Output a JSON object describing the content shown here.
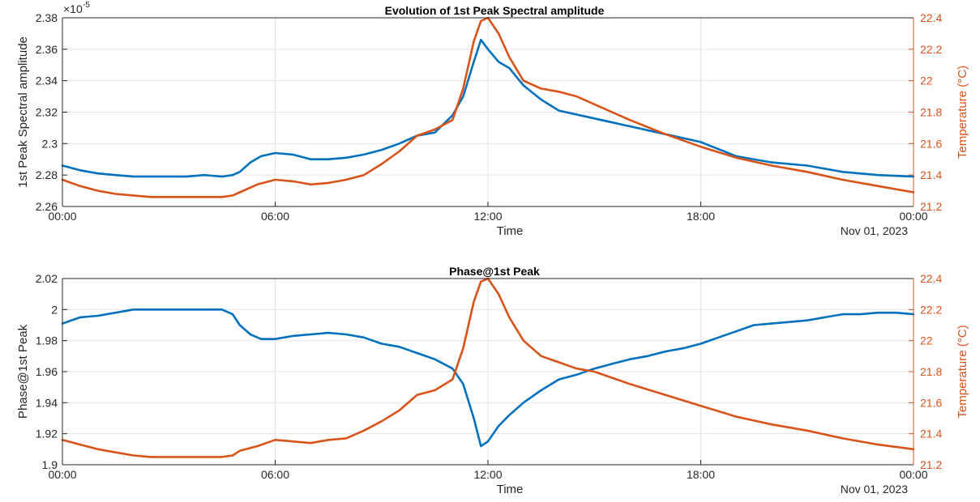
{
  "chart_data": [
    {
      "type": "line",
      "title": "Evolution of 1st Peak Spectral amplitude",
      "xlabel": "Time",
      "date_label": "Nov 01, 2023",
      "x_ticks": [
        "00:00",
        "06:00",
        "12:00",
        "18:00",
        "00:00"
      ],
      "x_range_hours": [
        0,
        24
      ],
      "y_left": {
        "label": "1st Peak Spectral amplitude",
        "exponent_label": "×10",
        "exponent_power": "-5",
        "range": [
          2.26,
          2.38
        ],
        "ticks": [
          "2.26",
          "2.28",
          "2.3",
          "2.32",
          "2.34",
          "2.36",
          "2.38"
        ]
      },
      "y_right": {
        "label": "Temperature (°C)",
        "range": [
          21.2,
          22.4
        ],
        "ticks": [
          "21.2",
          "21.4",
          "21.6",
          "21.8",
          "22",
          "22.2",
          "22.4"
        ]
      },
      "grid": true,
      "series": [
        {
          "axis": "left",
          "color": "#0072BD",
          "x": [
            0,
            0.5,
            1,
            1.5,
            2,
            2.5,
            3,
            3.5,
            4,
            4.5,
            4.8,
            5,
            5.3,
            5.6,
            6,
            6.5,
            7,
            7.5,
            8,
            8.5,
            9,
            9.5,
            10,
            10.5,
            11,
            11.3,
            11.6,
            11.8,
            12,
            12.3,
            12.6,
            13,
            13.5,
            14,
            15,
            16,
            17,
            18,
            19,
            20,
            21,
            22,
            23,
            24
          ],
          "y": [
            2.286,
            2.283,
            2.281,
            2.28,
            2.279,
            2.279,
            2.279,
            2.279,
            2.28,
            2.279,
            2.28,
            2.282,
            2.288,
            2.292,
            2.294,
            2.293,
            2.29,
            2.29,
            2.291,
            2.293,
            2.296,
            2.3,
            2.305,
            2.307,
            2.318,
            2.33,
            2.352,
            2.366,
            2.36,
            2.352,
            2.348,
            2.337,
            2.328,
            2.321,
            2.316,
            2.311,
            2.306,
            2.301,
            2.292,
            2.288,
            2.286,
            2.282,
            2.28,
            2.279
          ]
        },
        {
          "axis": "right",
          "color": "#D95319",
          "x": [
            0,
            0.5,
            1,
            1.5,
            2,
            2.5,
            3,
            3.5,
            4,
            4.5,
            4.8,
            5,
            5.5,
            6,
            6.5,
            7,
            7.5,
            8,
            8.5,
            9,
            9.5,
            10,
            10.5,
            11,
            11.3,
            11.6,
            11.8,
            12,
            12.3,
            12.6,
            13,
            13.5,
            14,
            14.5,
            15,
            16,
            17,
            18,
            19,
            20,
            21,
            22,
            23,
            24
          ],
          "y": [
            21.37,
            21.33,
            21.3,
            21.28,
            21.27,
            21.26,
            21.26,
            21.26,
            21.26,
            21.26,
            21.27,
            21.29,
            21.34,
            21.37,
            21.36,
            21.34,
            21.35,
            21.37,
            21.4,
            21.47,
            21.55,
            21.65,
            21.69,
            21.75,
            21.95,
            22.25,
            22.38,
            22.4,
            22.3,
            22.15,
            22.0,
            21.95,
            21.93,
            21.9,
            21.85,
            21.75,
            21.66,
            21.58,
            21.51,
            21.46,
            21.42,
            21.37,
            21.33,
            21.29
          ]
        }
      ]
    },
    {
      "type": "line",
      "title": "Phase@1st Peak",
      "xlabel": "Time",
      "date_label": "Nov 01, 2023",
      "x_ticks": [
        "00:00",
        "06:00",
        "12:00",
        "18:00",
        "00:00"
      ],
      "x_range_hours": [
        0,
        24
      ],
      "y_left": {
        "label": "Phase@1st Peak",
        "range": [
          1.9,
          2.02
        ],
        "ticks": [
          "1.9",
          "1.92",
          "1.94",
          "1.96",
          "1.98",
          "2",
          "2.02"
        ]
      },
      "y_right": {
        "label": "Temperature (°C)",
        "range": [
          21.2,
          22.4
        ],
        "ticks": [
          "21.2",
          "21.4",
          "21.6",
          "21.8",
          "22",
          "22.2",
          "22.4"
        ]
      },
      "grid": true,
      "series": [
        {
          "axis": "left",
          "color": "#0072BD",
          "x": [
            0,
            0.5,
            1,
            1.5,
            2,
            2.5,
            3,
            3.5,
            4,
            4.5,
            4.8,
            5,
            5.3,
            5.6,
            6,
            6.5,
            7,
            7.5,
            8,
            8.5,
            9,
            9.5,
            10,
            10.5,
            11,
            11.3,
            11.6,
            11.8,
            12,
            12.3,
            12.6,
            13,
            13.5,
            14,
            14.5,
            15,
            15.5,
            16,
            16.5,
            17,
            17.5,
            18,
            18.5,
            19,
            19.5,
            20,
            20.5,
            21,
            21.5,
            22,
            22.5,
            23,
            23.5,
            24
          ],
          "y": [
            1.991,
            1.995,
            1.996,
            1.998,
            2.0,
            2.0,
            2.0,
            2.0,
            2.0,
            2.0,
            1.997,
            1.99,
            1.984,
            1.981,
            1.981,
            1.983,
            1.984,
            1.985,
            1.984,
            1.982,
            1.978,
            1.976,
            1.972,
            1.968,
            1.962,
            1.952,
            1.93,
            1.912,
            1.915,
            1.925,
            1.932,
            1.94,
            1.948,
            1.955,
            1.958,
            1.962,
            1.965,
            1.968,
            1.97,
            1.973,
            1.975,
            1.978,
            1.982,
            1.986,
            1.99,
            1.991,
            1.992,
            1.993,
            1.995,
            1.997,
            1.997,
            1.998,
            1.998,
            1.997
          ]
        },
        {
          "axis": "right",
          "color": "#D95319",
          "x": [
            0,
            0.5,
            1,
            1.5,
            2,
            2.5,
            3,
            3.5,
            4,
            4.5,
            4.8,
            5,
            5.5,
            6,
            6.5,
            7,
            7.5,
            8,
            8.5,
            9,
            9.5,
            10,
            10.5,
            11,
            11.3,
            11.6,
            11.8,
            12,
            12.3,
            12.6,
            13,
            13.5,
            14,
            14.5,
            15,
            16,
            17,
            18,
            19,
            20,
            21,
            22,
            23,
            24
          ],
          "y": [
            21.36,
            21.33,
            21.3,
            21.28,
            21.26,
            21.25,
            21.25,
            21.25,
            21.25,
            21.25,
            21.26,
            21.29,
            21.32,
            21.36,
            21.35,
            21.34,
            21.36,
            21.37,
            21.42,
            21.48,
            21.55,
            21.65,
            21.68,
            21.75,
            21.95,
            22.25,
            22.38,
            22.4,
            22.3,
            22.15,
            22.0,
            21.9,
            21.86,
            21.82,
            21.8,
            21.72,
            21.65,
            21.58,
            21.51,
            21.46,
            21.42,
            21.37,
            21.33,
            21.3
          ]
        }
      ]
    }
  ]
}
